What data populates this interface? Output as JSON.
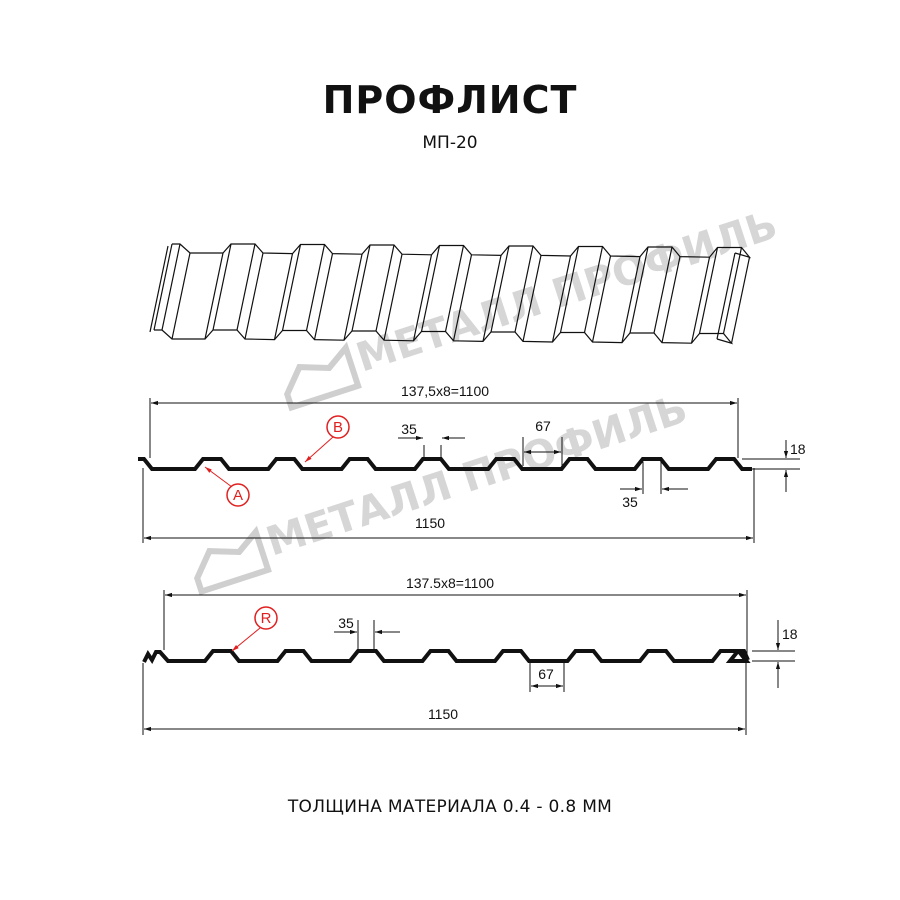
{
  "header": {
    "title": "ПРОФЛИСТ",
    "subtitle": "МП-20"
  },
  "watermark": {
    "text": "МЕТАЛЛ ПРОФИЛЬ"
  },
  "profile_a": {
    "span_label": "137,5x8=1100",
    "total_label": "1150",
    "top_width_label": "35",
    "bottom_width_label": "35",
    "pitch_label": "67",
    "height_label": "18",
    "markers": [
      "A",
      "B"
    ]
  },
  "profile_b": {
    "span_label": "137.5x8=1100",
    "total_label": "1150",
    "top_width_label": "35",
    "pitch_label": "67",
    "height_label": "18",
    "markers": [
      "R"
    ]
  },
  "footer": {
    "text": "ТОЛЩИНА МАТЕРИАЛА 0.4 - 0.8 ММ"
  },
  "colors": {
    "line": "#111111",
    "marker": "#e02020",
    "watermark": "#cfcfcf"
  }
}
